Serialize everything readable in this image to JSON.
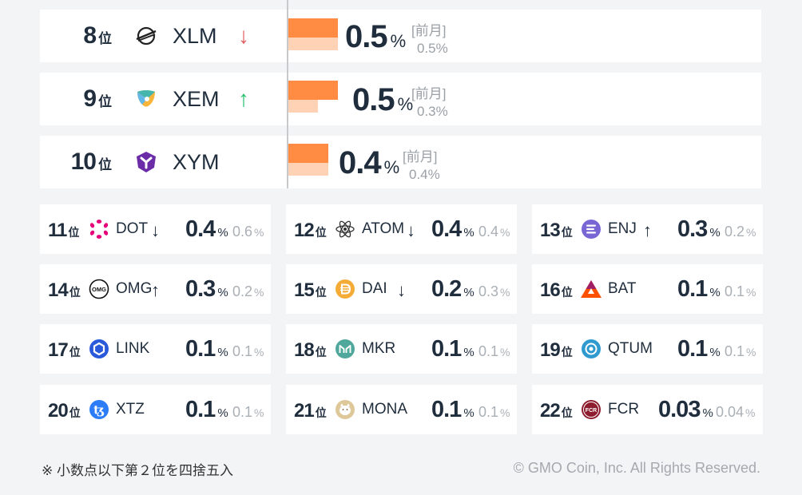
{
  "rank_unit": "位",
  "pct_unit": "%",
  "prev_month_label": "[前月]",
  "colors": {
    "bar": "#ff8c42",
    "bar_prev": "#ffd2b5",
    "up": "#1fbf6a",
    "down": "#e05a5a"
  },
  "top": [
    {
      "rank": "8",
      "symbol": "XLM",
      "trend": "↓",
      "value": "0.5",
      "prev": "0.5%",
      "share": 0.5,
      "prev_share": 0.5,
      "icon": "stellar-icon"
    },
    {
      "rank": "9",
      "symbol": "XEM",
      "trend": "↑",
      "value": "0.5",
      "prev": "0.3%",
      "share": 0.5,
      "prev_share": 0.3,
      "icon": "nem-icon"
    },
    {
      "rank": "10",
      "symbol": "XYM",
      "trend": "",
      "value": "0.4",
      "prev": "0.4%",
      "share": 0.4,
      "prev_share": 0.4,
      "icon": "symbol-icon"
    }
  ],
  "grid": [
    {
      "rank": "11",
      "symbol": "DOT",
      "trend": "↓",
      "value": "0.4",
      "prev": "0.6",
      "icon": "polkadot-icon"
    },
    {
      "rank": "12",
      "symbol": "ATOM",
      "trend": "↓",
      "value": "0.4",
      "prev": "0.4",
      "icon": "cosmos-icon"
    },
    {
      "rank": "13",
      "symbol": "ENJ",
      "trend": "↑",
      "value": "0.3",
      "prev": "0.2",
      "icon": "enjin-icon"
    },
    {
      "rank": "14",
      "symbol": "OMG",
      "trend": "↑",
      "value": "0.3",
      "prev": "0.2",
      "icon": "omg-icon"
    },
    {
      "rank": "15",
      "symbol": "DAI",
      "trend": "↓",
      "value": "0.2",
      "prev": "0.3",
      "icon": "dai-icon"
    },
    {
      "rank": "16",
      "symbol": "BAT",
      "trend": "",
      "value": "0.1",
      "prev": "0.1",
      "icon": "bat-icon"
    },
    {
      "rank": "17",
      "symbol": "LINK",
      "trend": "",
      "value": "0.1",
      "prev": "0.1",
      "icon": "chainlink-icon"
    },
    {
      "rank": "18",
      "symbol": "MKR",
      "trend": "",
      "value": "0.1",
      "prev": "0.1",
      "icon": "maker-icon"
    },
    {
      "rank": "19",
      "symbol": "QTUM",
      "trend": "",
      "value": "0.1",
      "prev": "0.1",
      "icon": "qtum-icon"
    },
    {
      "rank": "20",
      "symbol": "XTZ",
      "trend": "",
      "value": "0.1",
      "prev": "0.1",
      "icon": "tezos-icon"
    },
    {
      "rank": "21",
      "symbol": "MONA",
      "trend": "",
      "value": "0.1",
      "prev": "0.1",
      "icon": "monacoin-icon"
    },
    {
      "rank": "22",
      "symbol": "FCR",
      "trend": "",
      "value": "0.03",
      "prev": "0.04",
      "icon": "fcr-icon"
    }
  ],
  "footnote": "※ 小数点以下第２位を四捨五入",
  "copyright": "© GMO Coin, Inc. All Rights Reserved."
}
